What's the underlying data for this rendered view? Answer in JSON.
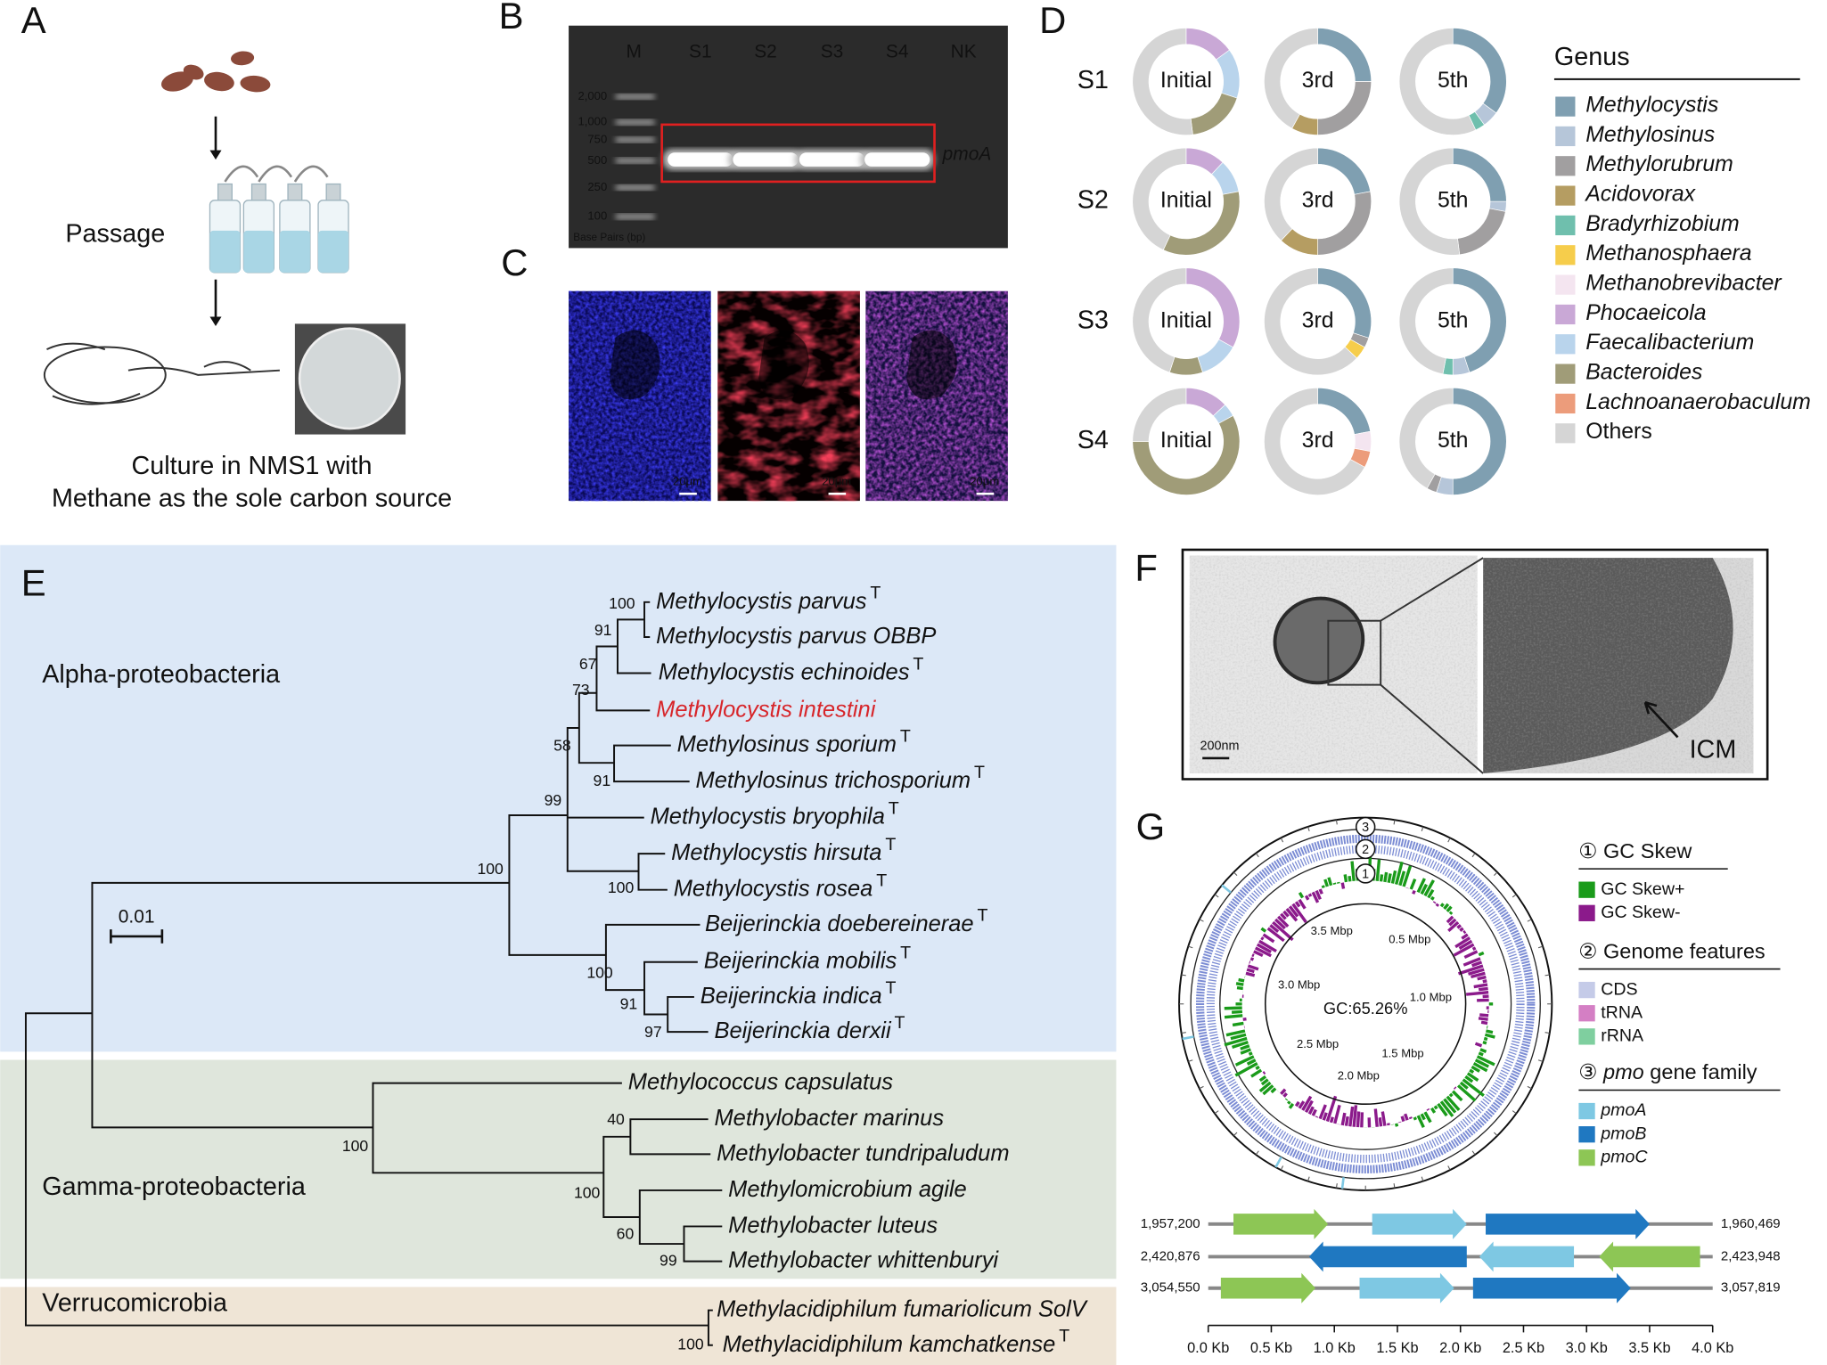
{
  "panel_a": {
    "letter": "A",
    "step": "Passage",
    "caption": [
      "Culture in NMS1 with",
      "Methane as the sole carbon source"
    ]
  },
  "panel_b": {
    "letter": "B",
    "lanes": [
      "M",
      "S1",
      "S2",
      "S3",
      "S4",
      "NK"
    ],
    "ladder": [
      "2,000",
      "1,000",
      "750",
      "500",
      "250",
      "100"
    ],
    "axis_note": "Base Pairs (bp)",
    "band_label": "pmoA"
  },
  "panel_c": {
    "letter": "C",
    "scale_bars": [
      "20μm",
      "20μm",
      "20μm"
    ]
  },
  "panel_d": {
    "letter": "D",
    "legend_title": "Genus",
    "genera": [
      {
        "name": "Methylocystis",
        "color": "#7f9fb1"
      },
      {
        "name": "Methylosinus",
        "color": "#b6c6d9"
      },
      {
        "name": "Methylorubrum",
        "color": "#a19fa0"
      },
      {
        "name": "Acidovorax",
        "color": "#b59d62"
      },
      {
        "name": "Bradyrhizobium",
        "color": "#6fbfad"
      },
      {
        "name": "Methanosphaera",
        "color": "#f6cd4b"
      },
      {
        "name": "Methanobrevibacter",
        "color": "#f4e5f0"
      },
      {
        "name": "Phocaeicola",
        "color": "#c9a8d6"
      },
      {
        "name": "Faecalibacterium",
        "color": "#b9d4ec"
      },
      {
        "name": "Bacteroides",
        "color": "#a09c78"
      },
      {
        "name": "Lachnoanaerobaculum",
        "color": "#ec9c7b"
      },
      {
        "name": "Others",
        "color": "#d5d5d5"
      }
    ],
    "samples": [
      "S1",
      "S2",
      "S3",
      "S4"
    ],
    "passages": [
      "Initial",
      "3rd",
      "5th"
    ],
    "composition": [
      [
        [
          0,
          0,
          0,
          0,
          0,
          0,
          0,
          15,
          15,
          18,
          0,
          52
        ],
        [
          25,
          0,
          25,
          8,
          0,
          0,
          0,
          0,
          0,
          0,
          0,
          42
        ],
        [
          35,
          5,
          0,
          0,
          3,
          0,
          0,
          0,
          0,
          0,
          0,
          57
        ]
      ],
      [
        [
          0,
          0,
          0,
          0,
          0,
          0,
          0,
          12,
          10,
          35,
          0,
          43
        ],
        [
          22,
          0,
          28,
          12,
          0,
          0,
          0,
          0,
          0,
          0,
          0,
          38
        ],
        [
          25,
          3,
          20,
          0,
          0,
          0,
          0,
          0,
          0,
          0,
          0,
          52
        ]
      ],
      [
        [
          0,
          0,
          0,
          0,
          0,
          0,
          0,
          33,
          12,
          10,
          0,
          45
        ],
        [
          30,
          0,
          3,
          0,
          0,
          4,
          0,
          0,
          0,
          0,
          0,
          63
        ],
        [
          45,
          5,
          0,
          0,
          3,
          0,
          0,
          0,
          0,
          0,
          0,
          47
        ]
      ],
      [
        [
          0,
          0,
          0,
          0,
          0,
          0,
          0,
          13,
          4,
          58,
          0,
          25
        ],
        [
          22,
          0,
          0,
          0,
          0,
          0,
          6,
          0,
          0,
          0,
          5,
          67
        ],
        [
          50,
          5,
          3,
          0,
          0,
          0,
          0,
          0,
          0,
          0,
          0,
          42
        ]
      ]
    ]
  },
  "panel_e": {
    "letter": "E",
    "groups": [
      "Alpha-proteobacteria",
      "Gamma-proteobacteria",
      "Verrucomicrobia"
    ],
    "scale": "0.01",
    "leaves": [
      {
        "name": "Methylocystis parvus",
        "superscript": "T"
      },
      {
        "name": "Methylocystis parvus OBBP"
      },
      {
        "name": "Methylocystis echinoides",
        "superscript": "T"
      },
      {
        "name": "Methylocystis intestini",
        "color": "#d7262b"
      },
      {
        "name": "Methylosinus sporium",
        "superscript": "T"
      },
      {
        "name": "Methylosinus trichosporium",
        "superscript": "T"
      },
      {
        "name": "Methylocystis bryophila",
        "superscript": "T"
      },
      {
        "name": "Methylocystis hirsuta",
        "superscript": "T"
      },
      {
        "name": "Methylocystis rosea",
        "superscript": "T"
      },
      {
        "name": "Beijerinckia doebereinerae",
        "superscript": "T"
      },
      {
        "name": "Beijerinckia mobilis",
        "superscript": "T"
      },
      {
        "name": "Beijerinckia indica",
        "superscript": "T"
      },
      {
        "name": "Beijerinckia derxii",
        "superscript": "T"
      },
      {
        "name": "Methylococcus capsulatus"
      },
      {
        "name": "Methylobacter marinus"
      },
      {
        "name": "Methylobacter tundripaludum"
      },
      {
        "name": "Methylomicrobium agile"
      },
      {
        "name": "Methylobacter luteus"
      },
      {
        "name": "Methylobacter whittenburyi"
      },
      {
        "name": "Methylacidiphilum fumariolicum SolV"
      },
      {
        "name": "Methylacidiphilum kamchatkense",
        "superscript": "T"
      }
    ],
    "bootstrap": [
      100,
      91,
      67,
      73,
      58,
      91,
      99,
      100,
      100,
      100,
      91,
      97,
      100,
      40,
      100,
      60,
      99,
      100
    ]
  },
  "panel_f": {
    "letter": "F",
    "scale_bar": "200nm",
    "arrow_label": "ICM"
  },
  "panel_g": {
    "letter": "G",
    "ring_markers": [
      "3",
      "2",
      "1"
    ],
    "ring_labels": [
      "0.5 Mbp",
      "1.0 Mbp",
      "1.5 Mbp",
      "2.0 Mbp",
      "2.5 Mbp",
      "3.0 Mbp",
      "3.5 Mbp"
    ],
    "gc_content": "GC:65.26%",
    "legend": [
      {
        "title": {
          "prefix": "① GC Skew"
        },
        "items": [
          {
            "name": "GC Skew+",
            "color": "#1a9b1a"
          },
          {
            "name": "GC Skew-",
            "color": "#8b1a8b"
          }
        ]
      },
      {
        "title": {
          "prefix": "② Genome features"
        },
        "items": [
          {
            "name": "CDS",
            "color": "#c5cbe8"
          },
          {
            "name": "tRNA",
            "color": "#d47fc4"
          },
          {
            "name": "rRNA",
            "color": "#7fcf9f"
          }
        ]
      },
      {
        "title": {
          "prefix": "③ ",
          "italic": "pmo",
          "rest": " gene family"
        },
        "items": [
          {
            "name": "pmoA",
            "color": "#7ec8e3"
          },
          {
            "name": "pmoB",
            "color": "#1f78c1"
          },
          {
            "name": "pmoC",
            "color": "#8dc655"
          }
        ]
      }
    ],
    "gene_map": [
      {
        "start": "1,957,200",
        "end": "1,960,469",
        "genes": [
          {
            "gene": "pmoC",
            "from": 0.2,
            "to": 0.95,
            "strand": "+"
          },
          {
            "gene": "pmoA",
            "from": 1.3,
            "to": 2.05,
            "strand": "+"
          },
          {
            "gene": "pmoB",
            "from": 2.2,
            "to": 3.5,
            "strand": "+"
          }
        ]
      },
      {
        "start": "2,420,876",
        "end": "2,423,948",
        "genes": [
          {
            "gene": "pmoB",
            "from": 0.8,
            "to": 2.05,
            "strand": "-"
          },
          {
            "gene": "pmoA",
            "from": 2.15,
            "to": 2.9,
            "strand": "-"
          },
          {
            "gene": "pmoC",
            "from": 3.1,
            "to": 3.9,
            "strand": "-"
          }
        ]
      },
      {
        "start": "3,054,550",
        "end": "3,057,819",
        "genes": [
          {
            "gene": "pmoC",
            "from": 0.1,
            "to": 0.85,
            "strand": "+"
          },
          {
            "gene": "pmoA",
            "from": 1.2,
            "to": 1.95,
            "strand": "+"
          },
          {
            "gene": "pmoB",
            "from": 2.1,
            "to": 3.35,
            "strand": "+"
          }
        ]
      }
    ],
    "kb_axis": [
      {
        "value": 0,
        "label": "0.0 Kb"
      },
      {
        "value": 0.5,
        "label": "0.5 Kb"
      },
      {
        "value": 1,
        "label": "1.0 Kb"
      },
      {
        "value": 1.5,
        "label": "1.5 Kb"
      },
      {
        "value": 2,
        "label": "2.0 Kb"
      },
      {
        "value": 2.5,
        "label": "2.5 Kb"
      },
      {
        "value": 3,
        "label": "3.0 Kb"
      },
      {
        "value": 3.5,
        "label": "3.5 Kb"
      },
      {
        "value": 4,
        "label": "4.0 Kb"
      }
    ]
  }
}
